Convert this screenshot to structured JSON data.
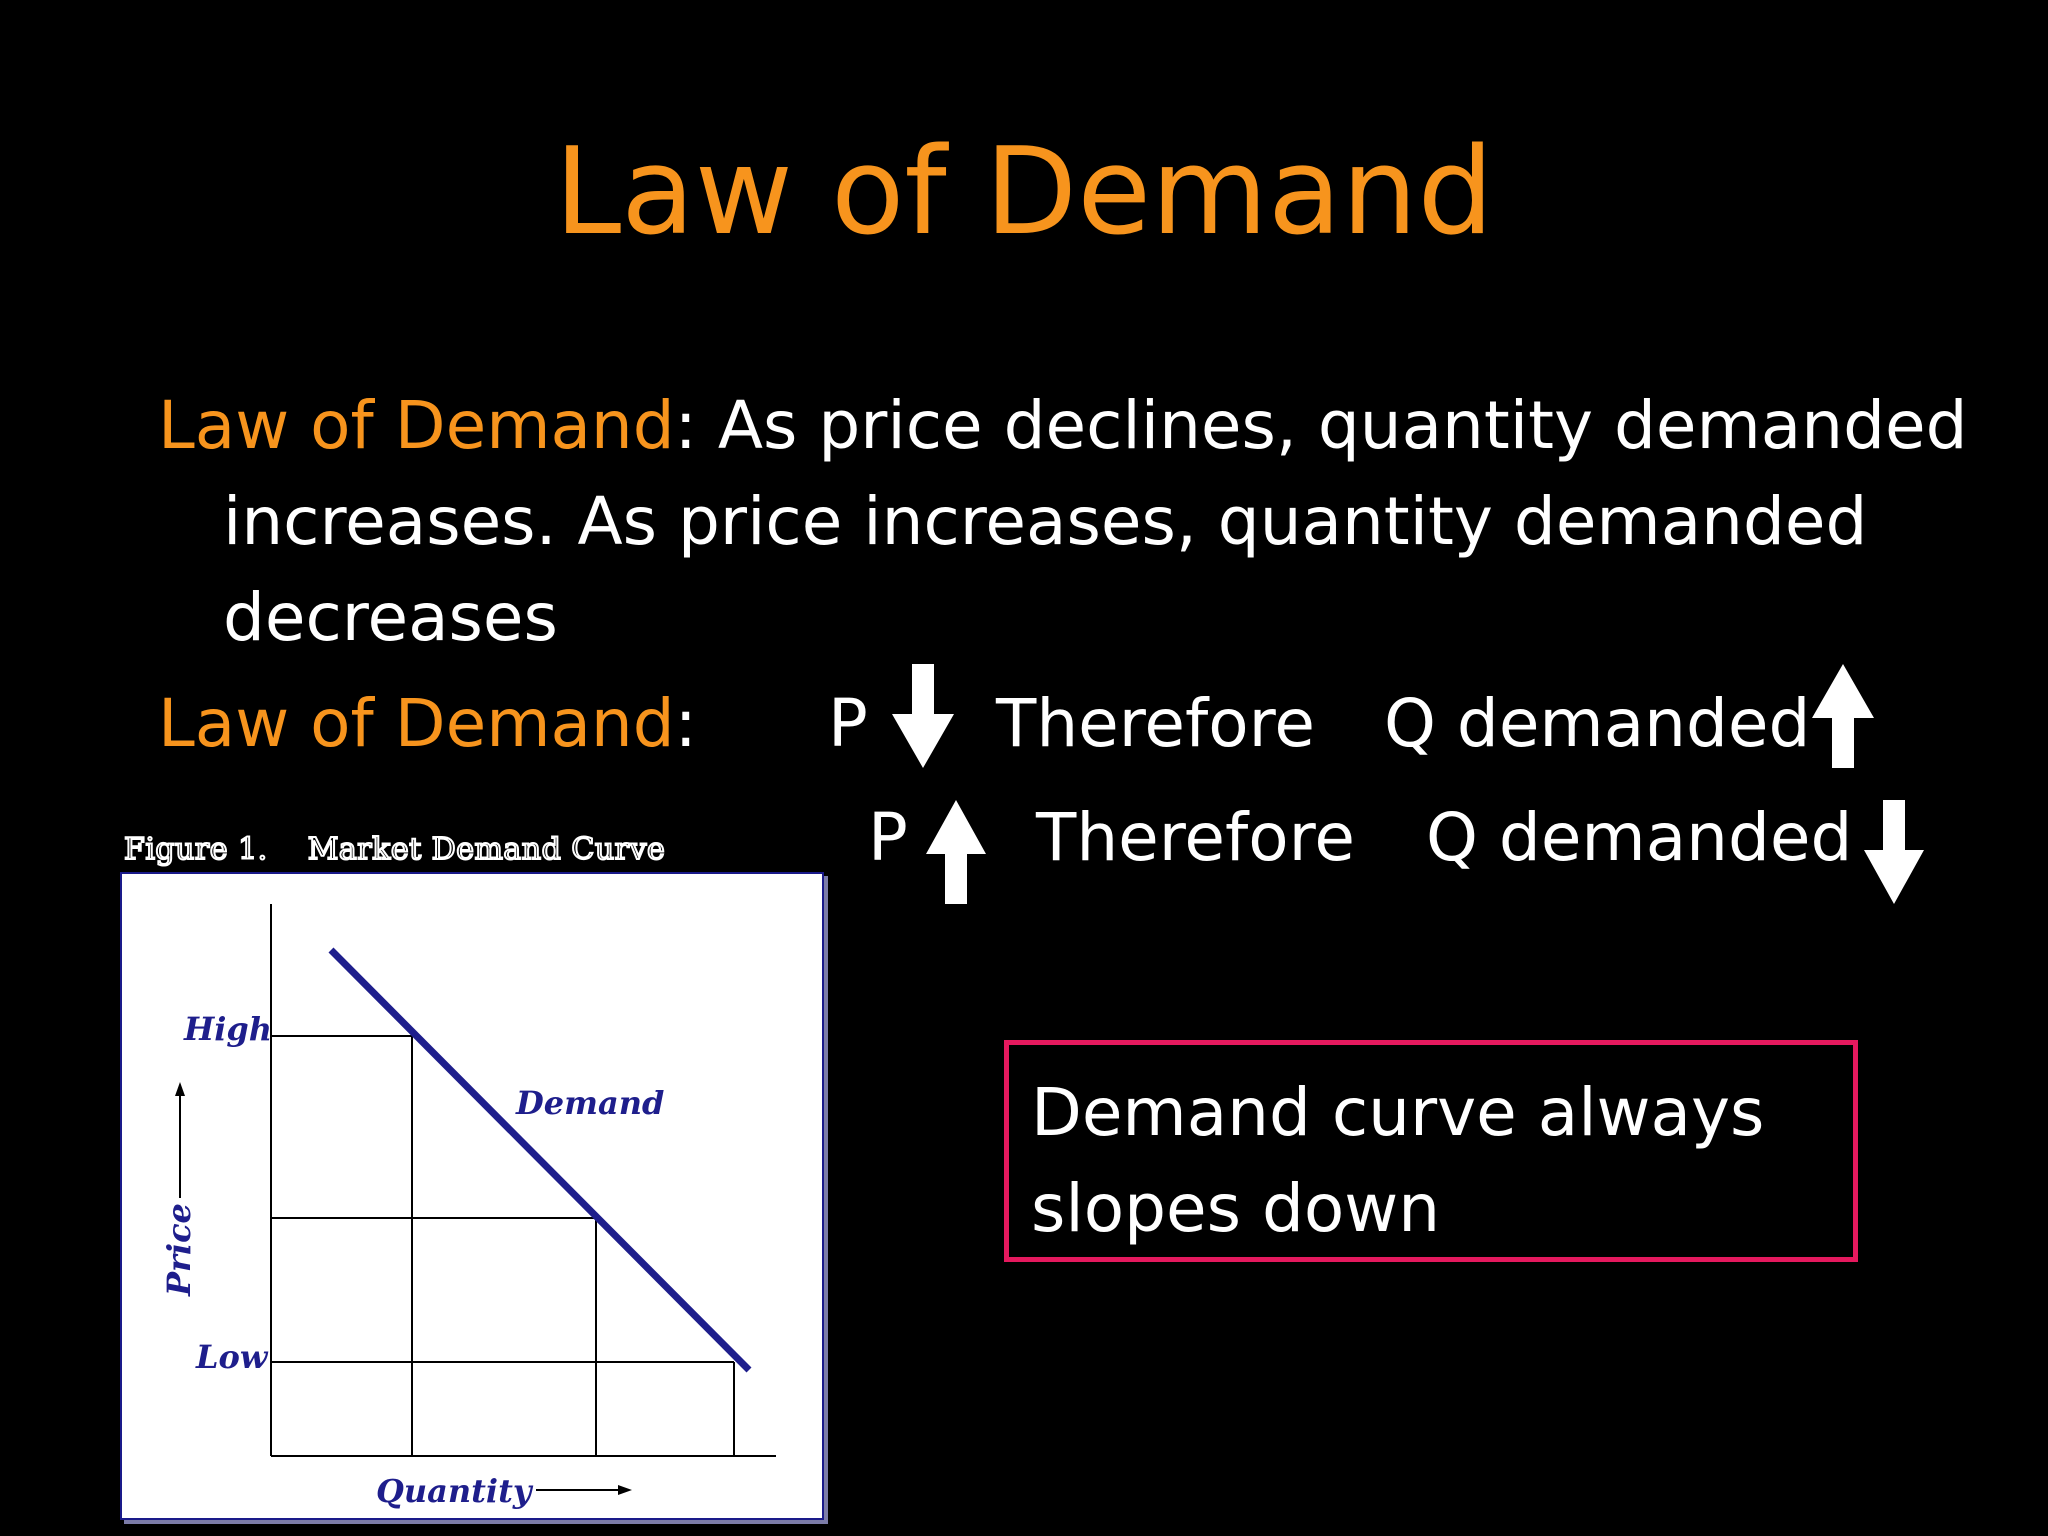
{
  "title": "Law of Demand",
  "definition": {
    "term": "Law of Demand",
    "sep": ": ",
    "line1": "As price declines, quantity demanded",
    "line2": "increases.  As price increases, quantity demanded",
    "line3": "decreases"
  },
  "rule": {
    "term": "Law of Demand",
    "sep": ":",
    "row1": {
      "p": "P",
      "p_arrow": "down-arrow-icon",
      "therefore": "Therefore",
      "q": "Q demanded",
      "q_arrow": "up-arrow-icon"
    },
    "row2": {
      "p": "P",
      "p_arrow": "up-arrow-icon",
      "therefore": "Therefore",
      "q": "Q demanded",
      "q_arrow": "down-arrow-icon"
    }
  },
  "figure": {
    "caption_num": "Figure 1.",
    "caption_title": "Market Demand Curve",
    "y_high": "High",
    "y_low": "Low",
    "y_axis": "Price",
    "x_axis": "Quantity",
    "curve_label": "Demand",
    "line_color": "#1E1E8C"
  },
  "callout": {
    "line1": "Demand curve always",
    "line2": "slopes down",
    "border_color": "#E5195E"
  },
  "colors": {
    "title": "#F7941D",
    "term": "#F7941D",
    "p": "#22E11B",
    "q": "#FFFF00",
    "text": "#FFFFFF",
    "background": "#000000"
  }
}
